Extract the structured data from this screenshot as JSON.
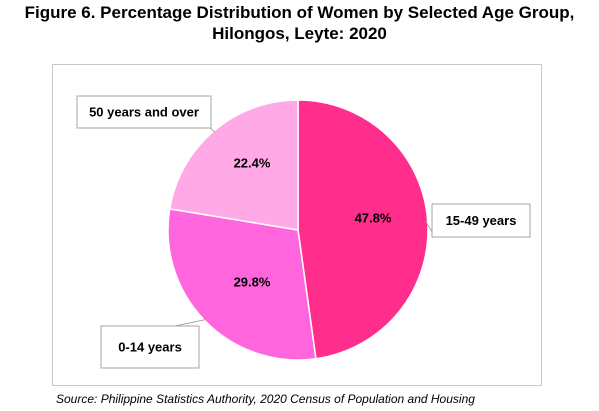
{
  "title_line1": "Figure 6. Percentage Distribution of Women by Selected Age Group,",
  "title_line2": "Hilongos, Leyte: 2020",
  "source": "Source: Philippine Statistics Authority, 2020 Census of Population and Housing",
  "chart_data": {
    "type": "pie",
    "title": "Figure 6. Percentage Distribution of Women by Selected Age Group, Hilongos, Leyte: 2020",
    "start_angle": "12 o'clock",
    "direction": "clockwise",
    "slices": [
      {
        "label": "15-49 years",
        "value": 47.8,
        "display": "47.8%",
        "color": "#ff2d8c"
      },
      {
        "label": "0-14 years",
        "value": 29.8,
        "display": "29.8%",
        "color": "#ff66dd"
      },
      {
        "label": "50 years and over",
        "value": 22.4,
        "display": "22.4%",
        "color": "#ffaae6"
      }
    ]
  }
}
